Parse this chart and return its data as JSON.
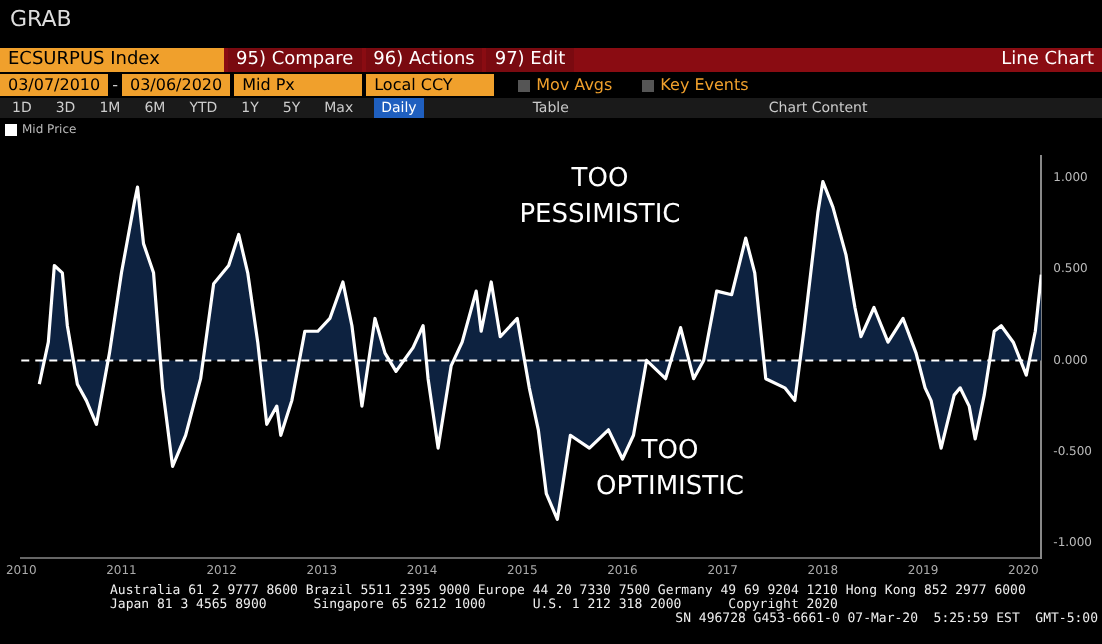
{
  "chart_data": {
    "type": "area",
    "title": "ECSURPUS Index",
    "annotations": [
      "GRAB",
      "95) Compare",
      "96) Actions",
      "97) Edit",
      "Line Chart",
      "03/07/2010",
      "-",
      "03/06/2020",
      "Mid Px",
      "Local CCY",
      "Mov Avgs",
      "Key Events",
      "1D",
      "3D",
      "1M",
      "6M",
      "YTD",
      "1Y",
      "5Y",
      "Max",
      "Daily",
      "Table",
      "Chart Content",
      "TOO PESSIMISTIC",
      "TOO OPTIMISTIC",
      "Australia 61 2 9777 8600 Brazil 5511 2395 9000 Europe 44 20 7330 7500 Germany 49 69 9204 1210 Hong Kong 852 2977 6000",
      "Japan 81 3 4565 8900      Singapore 65 6212 1000      U.S. 1 212 318 2000      Copyright 2020",
      "SN 496728 G453-6661-0 07-Mar-20  5:25:59 EST  GMT-5:00"
    ],
    "series": [
      {
        "name": "Mid Price",
        "color": "#ffffff",
        "x": [
          2010.18,
          2010.27,
          2010.33,
          2010.41,
          2010.46,
          2010.56,
          2010.65,
          2010.75,
          2010.88,
          2011.0,
          2011.13,
          2011.16,
          2011.22,
          2011.32,
          2011.41,
          2011.51,
          2011.64,
          2011.79,
          2011.92,
          2012.07,
          2012.17,
          2012.26,
          2012.36,
          2012.45,
          2012.55,
          2012.59,
          2012.7,
          2012.83,
          2012.96,
          2013.08,
          2013.21,
          2013.3,
          2013.4,
          2013.53,
          2013.63,
          2013.74,
          2013.91,
          2014.01,
          2014.06,
          2014.16,
          2014.29,
          2014.4,
          2014.54,
          2014.59,
          2014.69,
          2014.78,
          2014.95,
          2015.07,
          2015.16,
          2015.24,
          2015.35,
          2015.39,
          2015.48,
          2015.67,
          2015.86,
          2016.0,
          2016.11,
          2016.24,
          2016.43,
          2016.58,
          2016.71,
          2016.81,
          2016.94,
          2017.09,
          2017.23,
          2017.32,
          2017.43,
          2017.62,
          2017.72,
          2017.81,
          2017.95,
          2018.0,
          2018.1,
          2018.23,
          2018.32,
          2018.38,
          2018.51,
          2018.65,
          2018.8,
          2018.93,
          2019.02,
          2019.08,
          2019.18,
          2019.31,
          2019.37,
          2019.46,
          2019.52,
          2019.61,
          2019.71,
          2019.78,
          2019.9,
          2020.03,
          2020.12,
          2020.18
        ],
        "values": [
          -0.13,
          0.1,
          0.52,
          0.48,
          0.19,
          -0.13,
          -0.22,
          -0.35,
          0.04,
          0.48,
          0.87,
          0.95,
          0.64,
          0.48,
          -0.15,
          -0.58,
          -0.41,
          -0.1,
          0.42,
          0.52,
          0.69,
          0.48,
          0.1,
          -0.35,
          -0.25,
          -0.41,
          -0.22,
          0.16,
          0.16,
          0.23,
          0.43,
          0.19,
          -0.25,
          0.23,
          0.04,
          -0.06,
          0.07,
          0.19,
          -0.1,
          -0.48,
          -0.03,
          0.1,
          0.38,
          0.16,
          0.43,
          0.13,
          0.23,
          -0.15,
          -0.38,
          -0.73,
          -0.87,
          -0.73,
          -0.41,
          -0.48,
          -0.38,
          -0.54,
          -0.41,
          0,
          -0.1,
          0.18,
          -0.1,
          0,
          0.38,
          0.36,
          0.67,
          0.48,
          -0.1,
          -0.15,
          -0.22,
          0.16,
          0.81,
          0.98,
          0.84,
          0.58,
          0.29,
          0.13,
          0.29,
          0.1,
          0.23,
          0.04,
          -0.15,
          -0.22,
          -0.48,
          -0.19,
          -0.15,
          -0.25,
          -0.43,
          -0.19,
          0.16,
          0.19,
          0.1,
          -0.08,
          0.16,
          0.47
        ]
      }
    ],
    "xlim": [
      2010,
      2020.18
    ],
    "xticks": [
      2010,
      2011,
      2012,
      2013,
      2014,
      2015,
      2016,
      2017,
      2018,
      2019,
      2020
    ],
    "ylim": [
      -1.08,
      1.12
    ],
    "yticks": [
      {
        "value": -1,
        "label": "-1.000"
      },
      {
        "value": -0.5,
        "label": "-0.500"
      },
      {
        "value": 0,
        "label": "0.000"
      },
      {
        "value": 0.5,
        "label": "0.500"
      },
      {
        "value": 1,
        "label": "1.000"
      }
    ],
    "ref_lines": [
      {
        "axis": "y",
        "value": 0,
        "color": "#ffffff",
        "line_style": "dashed"
      }
    ],
    "legend": "top left",
    "marker": "none",
    "line_style": "solid"
  }
}
